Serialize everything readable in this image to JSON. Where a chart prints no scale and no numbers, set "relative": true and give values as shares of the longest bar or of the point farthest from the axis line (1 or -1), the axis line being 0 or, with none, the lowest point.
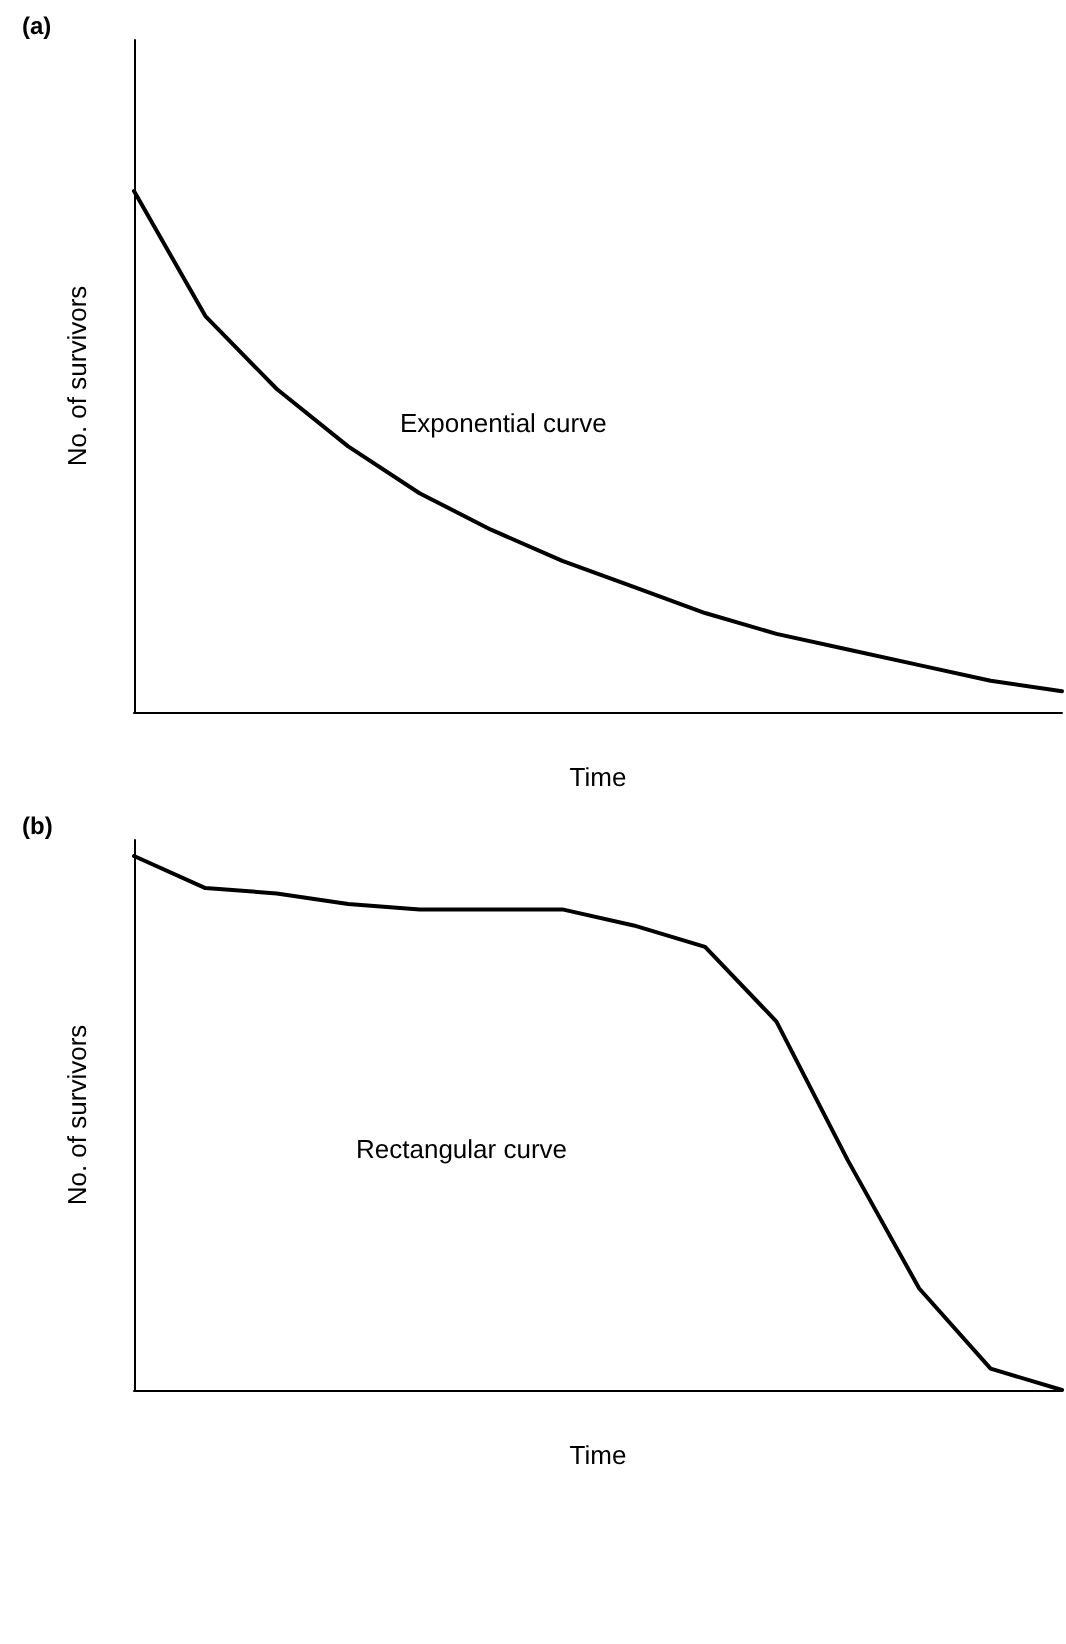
{
  "chart_data": [
    {
      "type": "line",
      "title": "(a)",
      "xlabel": "Time",
      "ylabel": "No. of survivors",
      "relative": true,
      "tick_labels": false,
      "marker": "none",
      "line_style": "solid",
      "annotations": [
        "Exponential curve"
      ],
      "categories": [
        null,
        null,
        null,
        null,
        null,
        null,
        null,
        null,
        null,
        null,
        null,
        null,
        null,
        null
      ],
      "series": [
        {
          "color": "#000000",
          "values": [
            1,
            0.76,
            0.62,
            0.51,
            0.42,
            0.35,
            0.29,
            0.24,
            0.19,
            0.15,
            0.12,
            0.09,
            0.06,
            0.04
          ]
        }
      ]
    },
    {
      "type": "line",
      "title": "(b)",
      "xlabel": "Time",
      "ylabel": "No. of survivors",
      "relative": true,
      "tick_labels": false,
      "marker": "none",
      "line_style": "solid",
      "annotations": [
        "Rectangular curve"
      ],
      "categories": [
        null,
        null,
        null,
        null,
        null,
        null,
        null,
        null,
        null,
        null,
        null,
        null,
        null,
        null
      ],
      "series": [
        {
          "color": "#000000",
          "values": [
            1,
            0.94,
            0.93,
            0.91,
            0.9,
            0.9,
            0.9,
            0.87,
            0.83,
            0.69,
            0.43,
            0.19,
            0.04,
            0
          ]
        }
      ]
    }
  ]
}
